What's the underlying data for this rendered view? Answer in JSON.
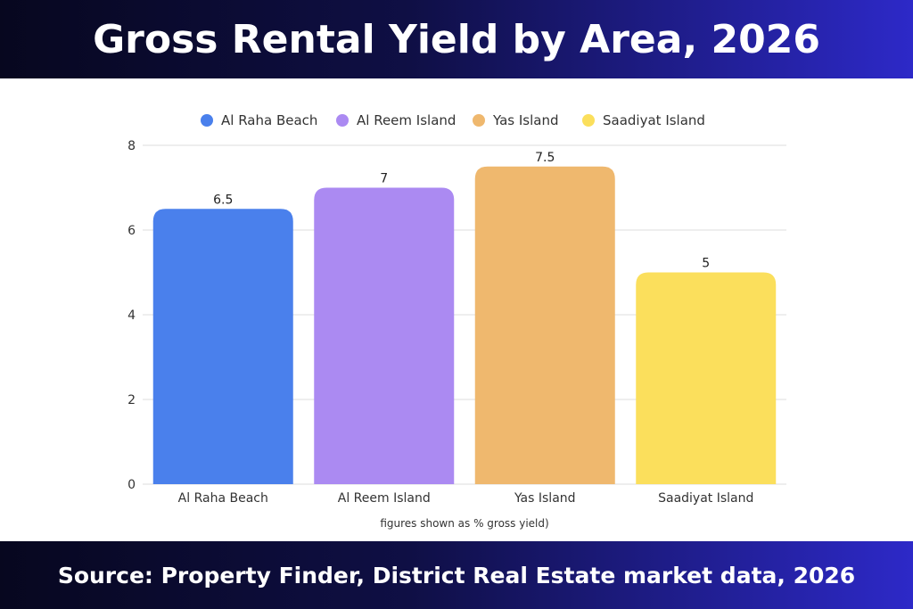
{
  "header": {
    "title": "Gross Rental Yield by Area, 2026"
  },
  "footer": {
    "source": "Source: Property Finder, District Real Estate market data, 2026"
  },
  "chart_data": {
    "type": "bar",
    "title": "Gross Rental Yield by Area, 2026",
    "categories": [
      "Al Raha Beach",
      "Al Reem Island",
      "Yas Island",
      "Saadiyat Island"
    ],
    "values": [
      6.5,
      7,
      7.5,
      5
    ],
    "value_labels": [
      "6.5",
      "7",
      "7.5",
      "5"
    ],
    "colors": [
      "#4a80ec",
      "#ab8af2",
      "#efb86e",
      "#fbdf5c"
    ],
    "legend": [
      "Al Raha Beach",
      "Al Reem Island",
      "Yas Island",
      "Saadiyat Island"
    ],
    "legend_position": "top-center",
    "ylim": [
      0,
      8
    ],
    "yticks": [
      0,
      2,
      4,
      6,
      8
    ],
    "grid": true,
    "note": "figures shown as % gross yield)"
  }
}
